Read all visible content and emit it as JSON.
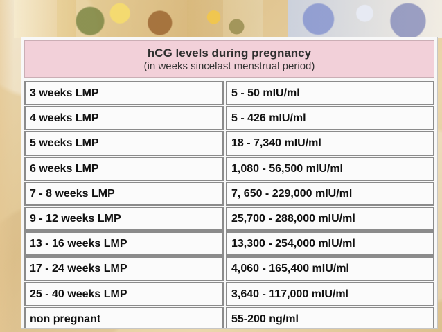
{
  "table": {
    "title": "hCG levels during pregnancy",
    "subtitle": "(in weeks sincelast menstrual period)",
    "rows": [
      {
        "period": "3 weeks LMP",
        "range": "5 - 50 mIU/ml"
      },
      {
        "period": "4 weeks LMP",
        "range": "5 - 426 mIU/ml"
      },
      {
        "period": "5 weeks LMP",
        "range": "18 - 7,340 mIU/ml"
      },
      {
        "period": "6 weeks LMP",
        "range": "1,080 - 56,500 mIU/ml"
      },
      {
        "period": "7 - 8 weeks LMP",
        "range": "7, 650 - 229,000 mIU/ml"
      },
      {
        "period": "9 - 12 weeks LMP",
        "range": "25,700 - 288,000 mIU/ml"
      },
      {
        "period": "13 - 16 weeks LMP",
        "range": "13,300 - 254,000 mIU/ml"
      },
      {
        "period": "17 - 24 weeks LMP",
        "range": "4,060 - 165,400 mIU/ml"
      },
      {
        "period": "25 - 40 weeks LMP",
        "range": "3,640 - 117,000 mIU/ml"
      },
      {
        "period": "non pregnant",
        "range": "55-200 ng/ml"
      }
    ]
  },
  "colors": {
    "background": "#e9d6ad",
    "header_fill": "#f2d0d9",
    "cell_border": "#8b8b8b",
    "text": "#101010"
  },
  "icons": {
    "decorative_top": "floral-banner"
  }
}
